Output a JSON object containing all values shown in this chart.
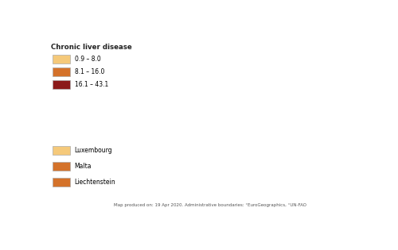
{
  "title": "Chronic liver disease",
  "legend_labels": [
    "0.9 – 8.0",
    "8.1 – 16.0",
    "16.1 – 43.1"
  ],
  "legend_colors": [
    "#f5c97a",
    "#d4722a",
    "#8b1a1a"
  ],
  "footer_text": "Map produced on: 19 Apr 2020. Administrative boundaries: °EuroGeographics, °UN-FAO",
  "background_color": "#ffffff",
  "ocean_color": "#e8e8e8",
  "non_eu_color": "#d3d3d3",
  "border_color": "#ffffff",
  "country_colors": {
    "Iceland": "#f5c97a",
    "Norway": "#f5c97a",
    "Sweden": "#f5c97a",
    "Finland": "#f5c97a",
    "Denmark": "#f5c97a",
    "Ireland": "#f5c97a",
    "United Kingdom": "#f5c97a",
    "Netherlands": "#f5c97a",
    "Belgium": "#f5c97a",
    "Luxembourg": "#f5c97a",
    "France": "#f5c97a",
    "Portugal": "#f5c97a",
    "Spain": "#d4722a",
    "Germany": "#f5c97a",
    "Austria": "#f5c97a",
    "Switzerland": "#f5c97a",
    "Liechtenstein": "#d4722a",
    "Italy": "#f5c97a",
    "Malta": "#d4722a",
    "Greece": "#f5c97a",
    "Cyprus": "#f5c97a",
    "Poland": "#d4722a",
    "Czech Republic": "#f5c97a",
    "Czechia": "#f5c97a",
    "Slovakia": "#f5c97a",
    "Hungary": "#d4722a",
    "Slovenia": "#f5c97a",
    "Croatia": "#f5c97a",
    "Bosnia and Herzegovina": "#d4722a",
    "Bosnia and Herz.": "#d4722a",
    "Serbia": "#d4722a",
    "Montenegro": "#d4722a",
    "Albania": "#f5c97a",
    "North Macedonia": "#d4722a",
    "N. Macedonia": "#d4722a",
    "Macedonia": "#d4722a",
    "Bulgaria": "#d4722a",
    "Romania": "#8b1a1a",
    "Estonia": "#f5c97a",
    "Latvia": "#f5c97a",
    "Lithuania": "#d4722a"
  },
  "inset_items": [
    [
      "Luxembourg",
      "#f5c97a"
    ],
    [
      "Malta",
      "#d4722a"
    ],
    [
      "Liechtenstein",
      "#d4722a"
    ]
  ],
  "xlim": [
    -25,
    45
  ],
  "ylim": [
    34,
    72
  ],
  "figsize": [
    5.0,
    3.15
  ],
  "dpi": 100
}
